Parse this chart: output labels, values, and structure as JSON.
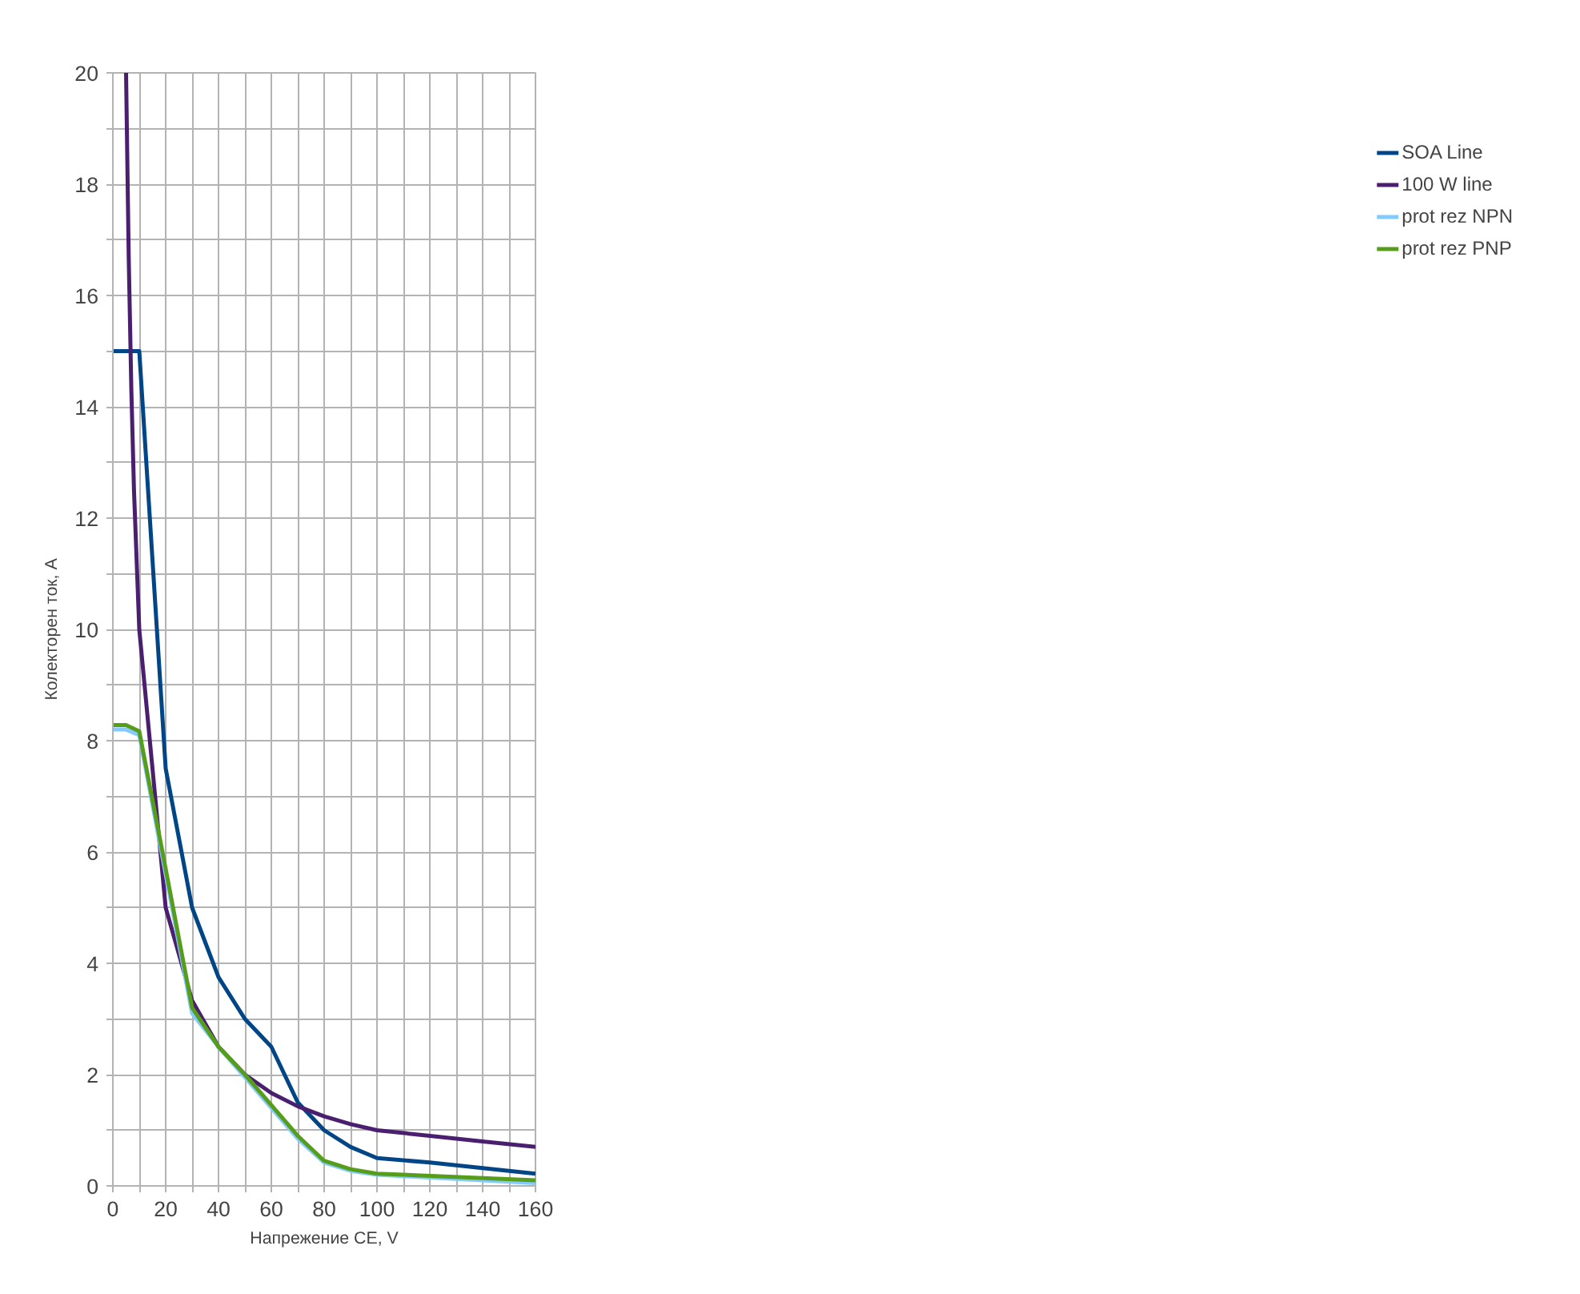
{
  "chart_data": {
    "type": "line",
    "xlabel": "Напрежение CE, V",
    "ylabel": "Колекторен ток, А",
    "xlim": [
      0,
      160
    ],
    "ylim": [
      0,
      20
    ],
    "xticks": [
      0,
      {
        "value": 10,
        "label": null
      },
      20,
      {
        "value": 30,
        "label": null
      },
      40,
      {
        "value": 50,
        "label": null
      },
      60,
      {
        "value": 70,
        "label": null
      },
      80,
      {
        "value": 90,
        "label": null
      },
      100,
      {
        "value": 110,
        "label": null
      },
      120,
      {
        "value": 130,
        "label": null
      },
      140,
      {
        "value": 150,
        "label": null
      },
      160
    ],
    "yticks": [
      0,
      {
        "value": 1,
        "label": null
      },
      2,
      {
        "value": 3,
        "label": null
      },
      4,
      {
        "value": 5,
        "label": null
      },
      6,
      {
        "value": 7,
        "label": null
      },
      8,
      {
        "value": 9,
        "label": null
      },
      10,
      {
        "value": 11,
        "label": null
      },
      12,
      {
        "value": 13,
        "label": null
      },
      14,
      {
        "value": 15,
        "label": null
      },
      16,
      {
        "value": 17,
        "label": null
      },
      18,
      {
        "value": 19,
        "label": null
      },
      20
    ],
    "grid": true,
    "legend": "right",
    "marker": "none",
    "line_style": "solid",
    "series": [
      {
        "name": "SOA Line",
        "color": "#004586",
        "x": [
          0,
          10,
          20,
          30,
          40,
          50,
          60,
          70,
          80,
          90,
          100,
          120,
          140,
          160
        ],
        "values": [
          15,
          15,
          7.5,
          5,
          3.75,
          3,
          2.5,
          1.5,
          1,
          0.7,
          0.5,
          0.42,
          0.32,
          0.22
        ]
      },
      {
        "name": "100 W line",
        "color": "#4b1f6f",
        "x": [
          5,
          6,
          7,
          8,
          10,
          20,
          30,
          40,
          50,
          60,
          70,
          80,
          90,
          100,
          120,
          140,
          160
        ],
        "values": [
          20,
          16.7,
          14.3,
          12.5,
          10,
          5,
          3.33,
          2.5,
          2,
          1.67,
          1.43,
          1.25,
          1.11,
          1,
          0.9,
          0.8,
          0.7
        ]
      },
      {
        "name": "prot rez NPN",
        "color": "#83caff",
        "x": [
          0,
          5,
          10,
          20,
          30,
          40,
          50,
          60,
          70,
          80,
          90,
          100,
          160
        ],
        "values": [
          8.2,
          8.2,
          8.1,
          5.6,
          3.1,
          2.5,
          1.95,
          1.4,
          0.85,
          0.42,
          0.27,
          0.2,
          0.05
        ]
      },
      {
        "name": "prot rez PNP",
        "color": "#579d1c",
        "x": [
          0,
          5,
          10,
          20,
          30,
          40,
          50,
          60,
          70,
          80,
          90,
          100,
          160
        ],
        "values": [
          8.28,
          8.28,
          8.17,
          5.7,
          3.2,
          2.5,
          2,
          1.45,
          0.9,
          0.45,
          0.3,
          0.22,
          0.1
        ]
      }
    ]
  }
}
